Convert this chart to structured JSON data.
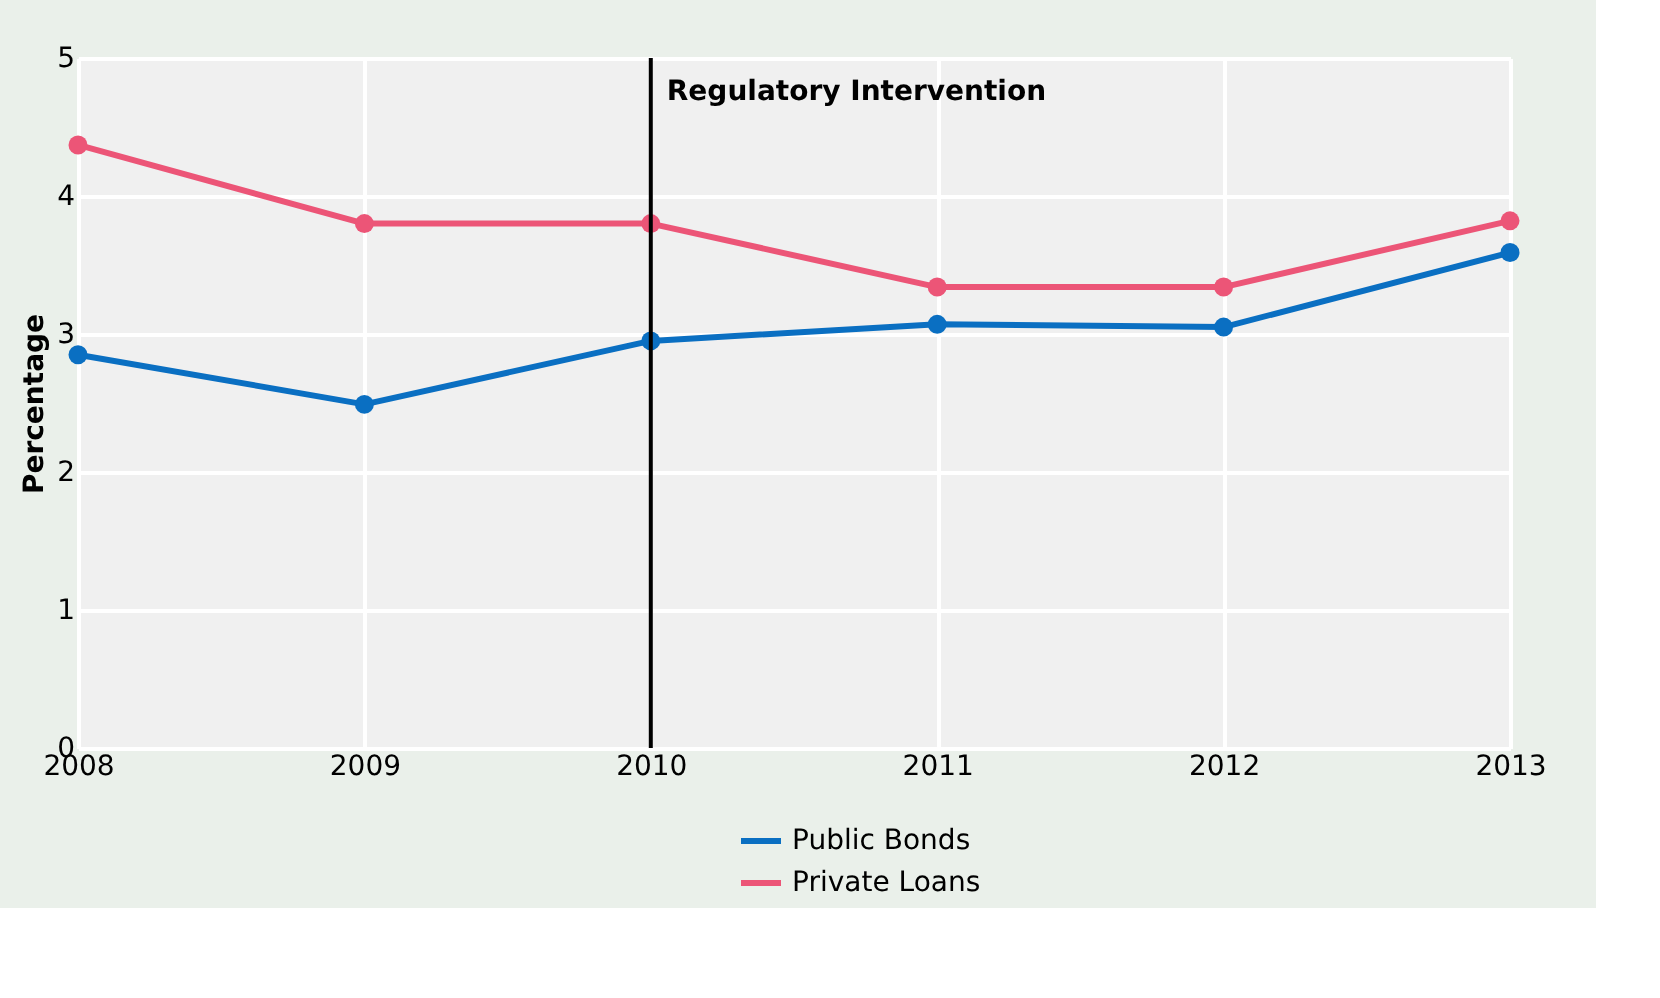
{
  "chart_data": {
    "type": "line",
    "ylabel": "Percentage",
    "x": [
      2008,
      2009,
      2010,
      2011,
      2012,
      2013
    ],
    "series": [
      {
        "name": "Public Bonds",
        "color": "#0a6fc2",
        "values": [
          2.85,
          2.49,
          2.95,
          3.07,
          3.05,
          3.59
        ]
      },
      {
        "name": "Private Loans",
        "color": "#ec5577",
        "values": [
          4.37,
          3.8,
          3.8,
          3.34,
          3.34,
          3.82
        ]
      }
    ],
    "xlim": [
      2008,
      2013
    ],
    "xticks": [
      2008,
      2009,
      2010,
      2011,
      2012,
      2013
    ],
    "ylim": [
      0,
      5
    ],
    "yticks": [
      0,
      1,
      2,
      3,
      4,
      5
    ],
    "ref_lines": [
      {
        "axis": "x",
        "value": 2010,
        "label": "Regulatory Intervention",
        "color": "#000000"
      }
    ],
    "grid": true,
    "legend": "bottom",
    "marker": "circle",
    "line_style": "solid"
  }
}
